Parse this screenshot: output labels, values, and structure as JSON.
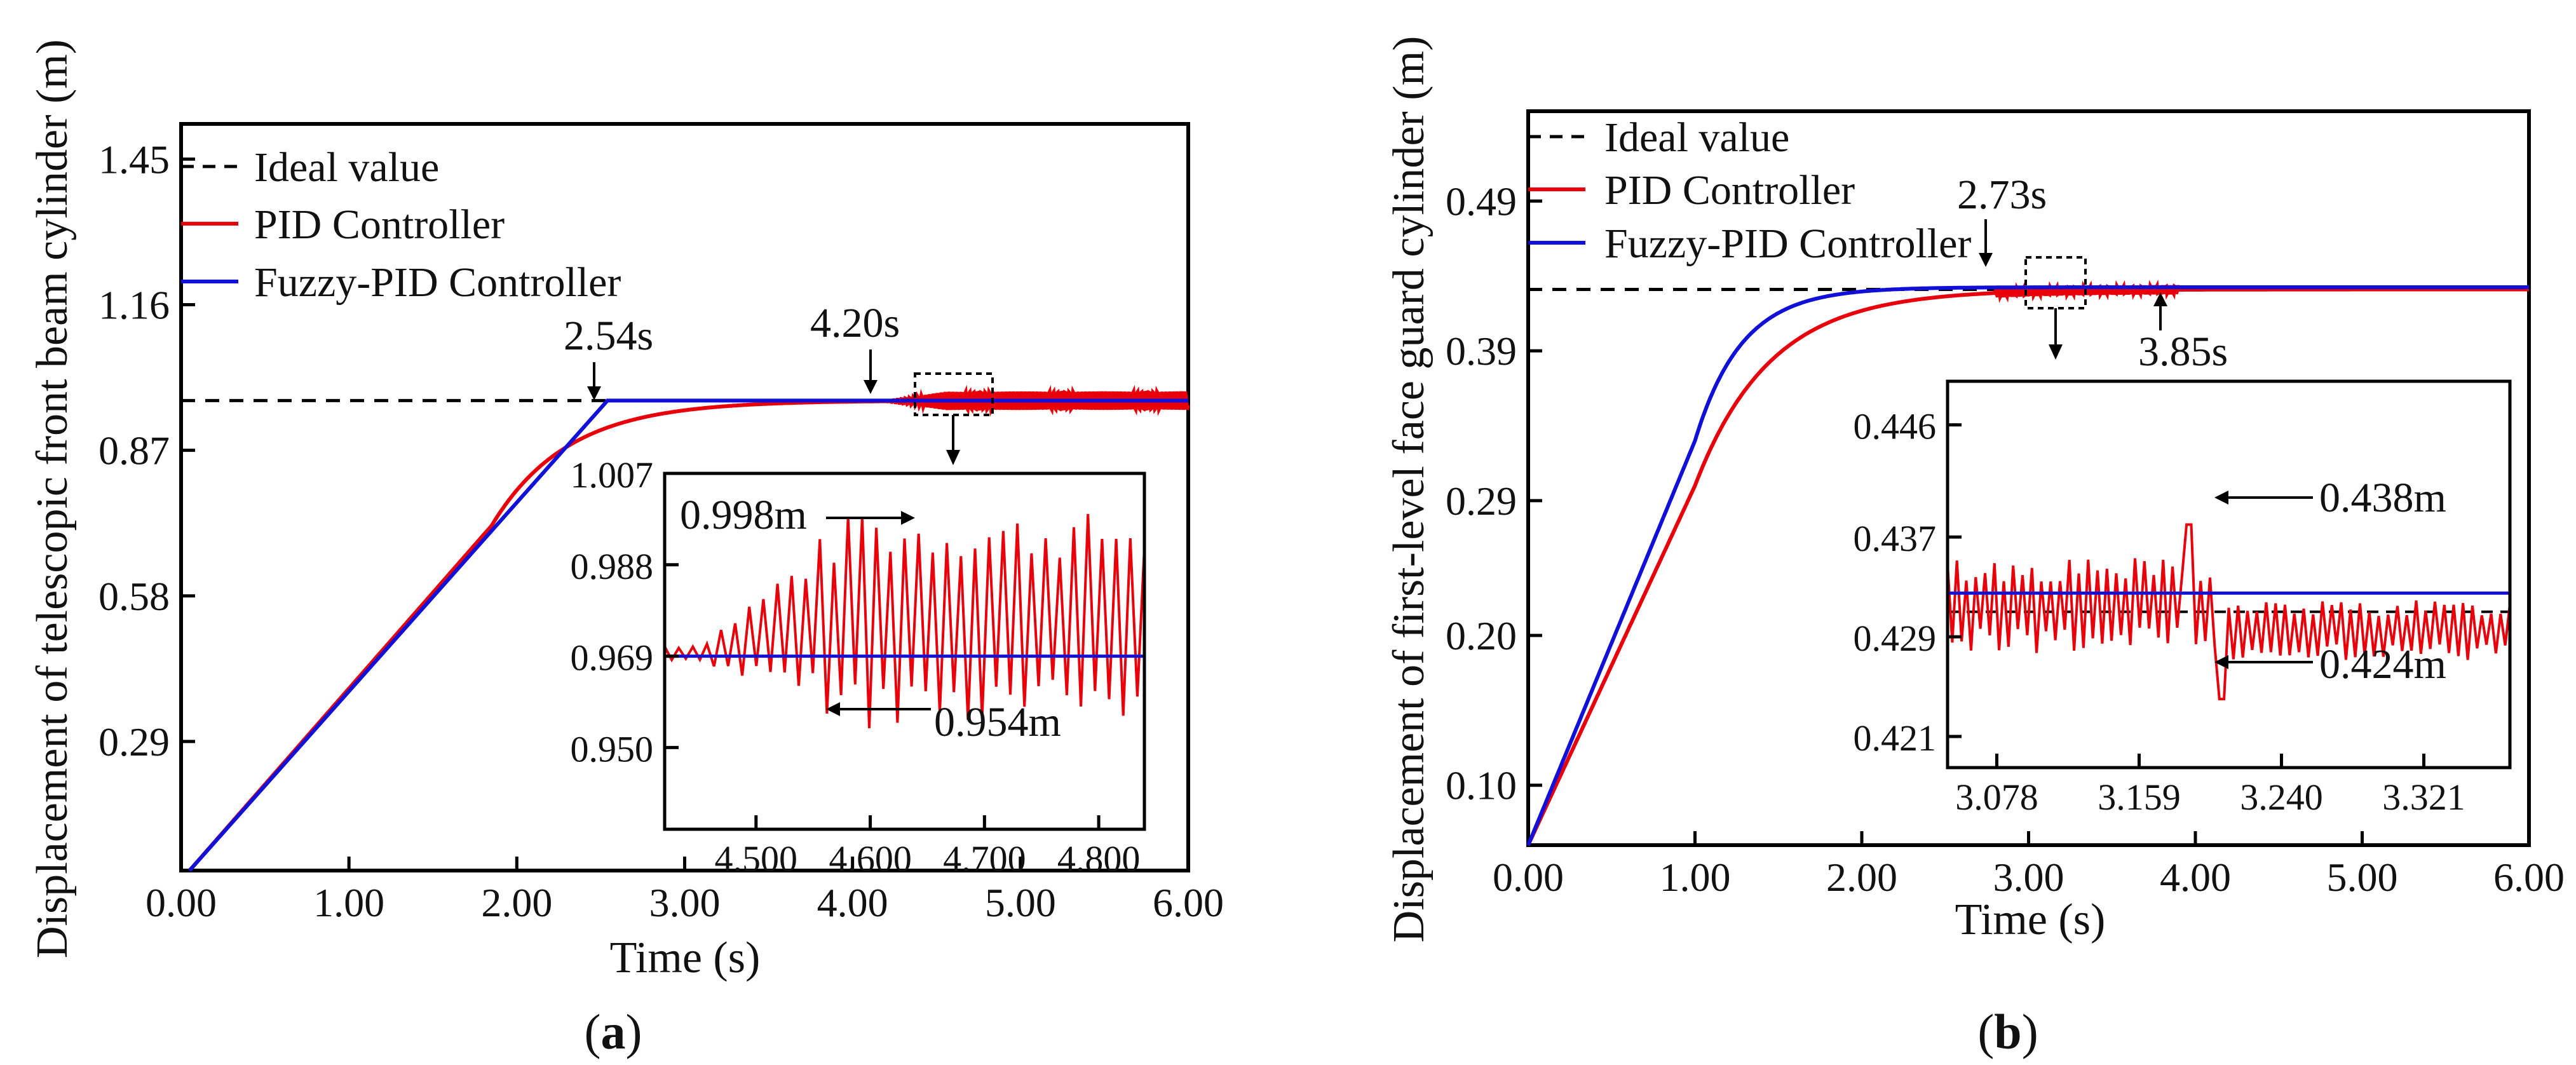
{
  "colors": {
    "ideal": "#000000",
    "pid": "#e8000b",
    "fuzzy": "#1010d8",
    "axis": "#000000"
  },
  "chart_data": [
    {
      "type": "line",
      "caption": "(a)",
      "caption_letter": "a",
      "xlabel": "Time (s)",
      "ylabel": "Displacement of telescopic front beam cylinder (m)",
      "xlim": [
        0,
        6
      ],
      "ylim": [
        0.033,
        1.52
      ],
      "xticks": [
        "0.00",
        "1.00",
        "2.00",
        "3.00",
        "4.00",
        "5.00",
        "6.00"
      ],
      "yticks": [
        "0.29",
        "0.58",
        "0.87",
        "1.16",
        "1.45"
      ],
      "legend": [
        "Ideal value",
        "PID Controller",
        "Fuzzy-PID Controller"
      ],
      "series": [
        {
          "name": "Ideal value",
          "x": [
            0,
            6
          ],
          "y": [
            0.969,
            0.969
          ]
        },
        {
          "name": "Fuzzy-PID Controller",
          "x": [
            0.05,
            2.54,
            6.0
          ],
          "y": [
            0.033,
            0.969,
            0.969
          ]
        },
        {
          "name": "PID Controller",
          "description": "ramp to ~0.72 m at 1.85 s, smooth approach to 0.969 m, oscillation after 4.20 s"
        }
      ],
      "annotations": [
        "2.54s",
        "4.20s"
      ],
      "inset": {
        "xlim": [
          4.42,
          4.84
        ],
        "ylim": [
          0.933,
          1.007
        ],
        "xticks": [
          "4.500",
          "4.600",
          "4.700",
          "4.800"
        ],
        "yticks": [
          "0.950",
          "0.969",
          "0.988",
          "1.007"
        ],
        "annotations": [
          "0.998m",
          "0.954m"
        ],
        "series": [
          {
            "name": "Fuzzy-PID Controller",
            "y_const": 0.969
          },
          {
            "name": "PID Controller",
            "y_max": 0.998,
            "y_min": 0.954
          }
        ]
      }
    },
    {
      "type": "line",
      "caption": "(b)",
      "caption_letter": "b",
      "xlabel": "Time (s)",
      "ylabel": "Displacement of first-level face guard cylinder (m)",
      "xlim": [
        0,
        6
      ],
      "ylim": [
        0.06,
        0.55
      ],
      "xticks": [
        "0.00",
        "1.00",
        "2.00",
        "3.00",
        "4.00",
        "5.00",
        "6.00"
      ],
      "yticks": [
        "0.10",
        "0.20",
        "0.29",
        "0.39",
        "0.49"
      ],
      "legend": [
        "Ideal value",
        "PID Controller",
        "Fuzzy-PID Controller"
      ],
      "series": [
        {
          "name": "Ideal value",
          "x": [
            0,
            6
          ],
          "y": [
            0.431,
            0.431
          ]
        },
        {
          "name": "Fuzzy-PID Controller",
          "description": "rises from 0.06 m, settles at 0.432 m near 2.73 s"
        },
        {
          "name": "PID Controller",
          "description": "slower rise, small oscillation near 3.1 s, settles at 0.431 m by 3.85 s"
        }
      ],
      "annotations": [
        "2.73s",
        "3.85s"
      ],
      "inset": {
        "xlim": [
          3.05,
          3.37
        ],
        "ylim": [
          0.4185,
          0.4495
        ],
        "xticks": [
          "3.078",
          "3.159",
          "3.240",
          "3.321"
        ],
        "yticks": [
          "0.421",
          "0.429",
          "0.437",
          "0.446"
        ],
        "annotations": [
          "0.438m",
          "0.424m"
        ],
        "series": [
          {
            "name": "Ideal value",
            "y_const": 0.431
          },
          {
            "name": "Fuzzy-PID Controller",
            "y_const": 0.4325
          },
          {
            "name": "PID Controller",
            "y_max": 0.438,
            "y_min": 0.424
          }
        ]
      }
    }
  ]
}
